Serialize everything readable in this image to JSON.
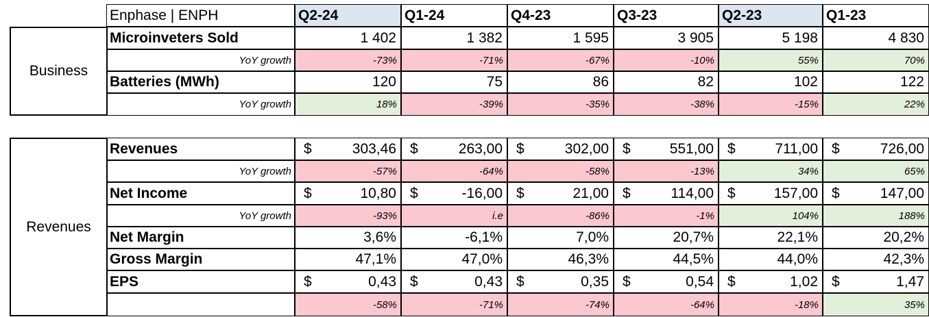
{
  "title": "Enphase | ENPH",
  "quarters": [
    "Q2-24",
    "Q1-24",
    "Q4-23",
    "Q3-23",
    "Q2-23",
    "Q1-23"
  ],
  "sections": {
    "business": "Business",
    "revenues": "Revenues"
  },
  "yoy_label": "YoY growth",
  "currency_symbol": "$",
  "colors": {
    "positive": "#e2efda",
    "negative": "#fcc8cf",
    "header_highlight": "#dce6f1"
  },
  "business": {
    "microinverters": {
      "label": "Microinveters Sold",
      "values": [
        "1 402",
        "1 382",
        "1 595",
        "3 905",
        "5 198",
        "4 830"
      ],
      "yoy": [
        "-73%",
        "-71%",
        "-67%",
        "-10%",
        "55%",
        "70%"
      ],
      "yoy_sign": [
        "neg",
        "neg",
        "neg",
        "neg",
        "pos",
        "pos"
      ]
    },
    "batteries": {
      "label": "Batteries (MWh)",
      "values": [
        "120",
        "75",
        "86",
        "82",
        "102",
        "122"
      ],
      "yoy": [
        "18%",
        "-39%",
        "-35%",
        "-38%",
        "-15%",
        "22%"
      ],
      "yoy_sign": [
        "pos",
        "neg",
        "neg",
        "neg",
        "neg",
        "pos"
      ]
    }
  },
  "financials": {
    "revenues": {
      "label": "Revenues",
      "values": [
        "303,46",
        "263,00",
        "302,00",
        "551,00",
        "711,00",
        "726,00"
      ],
      "yoy": [
        "-57%",
        "-64%",
        "-58%",
        "-13%",
        "34%",
        "65%"
      ],
      "yoy_sign": [
        "neg",
        "neg",
        "neg",
        "neg",
        "pos",
        "pos"
      ]
    },
    "net_income": {
      "label": "Net Income",
      "values": [
        "10,80",
        "-16,00",
        "21,00",
        "114,00",
        "157,00",
        "147,00"
      ],
      "yoy": [
        "-93%",
        "i.e",
        "-86%",
        "-1%",
        "104%",
        "188%"
      ],
      "yoy_sign": [
        "neg",
        "neg",
        "neg",
        "neg",
        "pos",
        "pos"
      ]
    },
    "net_margin": {
      "label": "Net Margin",
      "values": [
        "3,6%",
        "-6,1%",
        "7,0%",
        "20,7%",
        "22,1%",
        "20,2%"
      ]
    },
    "gross_margin": {
      "label": "Gross Margin",
      "values": [
        "47,1%",
        "47,0%",
        "46,3%",
        "44,5%",
        "44,0%",
        "42,3%"
      ]
    },
    "eps": {
      "label": "EPS",
      "values": [
        "0,43",
        "0,43",
        "0,35",
        "0,54",
        "1,02",
        "1,47"
      ],
      "yoy": [
        "-58%",
        "-71%",
        "-74%",
        "-64%",
        "-18%",
        "35%"
      ],
      "yoy_sign": [
        "neg",
        "neg",
        "neg",
        "neg",
        "neg",
        "pos"
      ]
    }
  }
}
